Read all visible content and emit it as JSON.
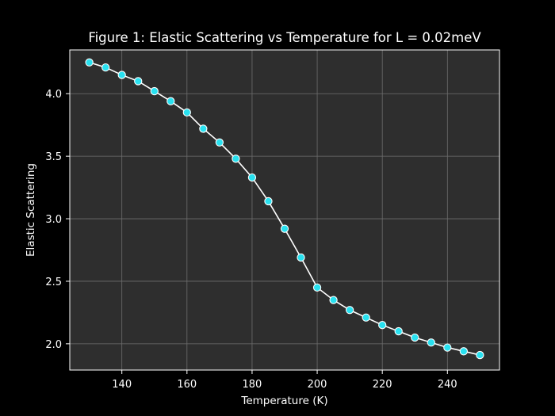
{
  "chart_data": {
    "type": "line",
    "title": "Figure 1: Elastic Scattering vs Temperature for L = 0.02meV",
    "xlabel": "Temperature (K)",
    "ylabel": "Elastic Scattering",
    "xlim": [
      124,
      256
    ],
    "ylim": [
      1.79,
      4.35
    ],
    "xticks": [
      140,
      160,
      180,
      200,
      220,
      240
    ],
    "yticks": [
      2.0,
      2.5,
      3.0,
      3.5,
      4.0
    ],
    "ytick_format": 1,
    "grid": true,
    "colors": {
      "background": "#000000",
      "plot_background": "#2e2e2e",
      "grid": "#6e6e6e",
      "axis": "#ffffff",
      "line": "#ffffff",
      "marker": "#29e1f0",
      "marker_edge": "#ffffff"
    },
    "series": [
      {
        "x": [
          130,
          135,
          140,
          145,
          150,
          155,
          160,
          165,
          170,
          175,
          180,
          185,
          190,
          195,
          200,
          205,
          210,
          215,
          220,
          225,
          230,
          235,
          240,
          245,
          250
        ],
        "values": [
          4.25,
          4.21,
          4.15,
          4.1,
          4.02,
          3.94,
          3.85,
          3.72,
          3.61,
          3.48,
          3.33,
          3.14,
          2.92,
          2.69,
          2.45,
          2.35,
          2.27,
          2.21,
          2.15,
          2.1,
          2.05,
          2.01,
          1.97,
          1.94,
          1.91
        ]
      }
    ]
  }
}
